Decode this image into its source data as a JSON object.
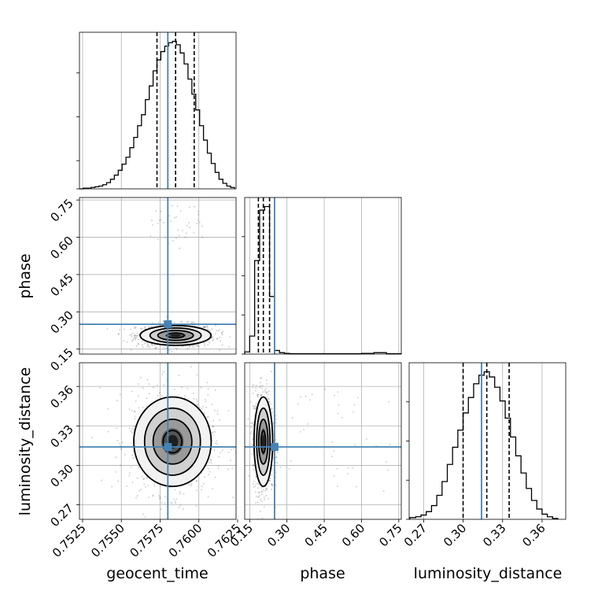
{
  "chart_data": {
    "type": "corner",
    "colors": {
      "truth": "#4682b4",
      "hist": "#000000",
      "grid": "#b0b0b0",
      "points": "#000000"
    },
    "parameters": [
      "geocent_time",
      "phase",
      "luminosity_distance"
    ],
    "axis_labels": {
      "x": [
        "geocent_time",
        "phase",
        "luminosity_distance"
      ],
      "y": [
        "phase",
        "luminosity_distance"
      ]
    },
    "ranges": {
      "geocent_time": [
        0.7523,
        0.7624
      ],
      "phase": [
        0.13,
        0.76
      ],
      "luminosity_distance": [
        0.259,
        0.378
      ]
    },
    "ticks": {
      "geocent_time": [
        {
          "v": 0.7525,
          "label": "0.7525"
        },
        {
          "v": 0.755,
          "label": "0.7550"
        },
        {
          "v": 0.7575,
          "label": "0.7575"
        },
        {
          "v": 0.76,
          "label": "0.7600"
        },
        {
          "v": 0.7625,
          "label": "0.7625"
        }
      ],
      "phase": [
        {
          "v": 0.15,
          "label": "0.15"
        },
        {
          "v": 0.3,
          "label": "0.30"
        },
        {
          "v": 0.45,
          "label": "0.45"
        },
        {
          "v": 0.6,
          "label": "0.60"
        },
        {
          "v": 0.75,
          "label": "0.75"
        }
      ],
      "luminosity_distance": [
        {
          "v": 0.27,
          "label": "0.27"
        },
        {
          "v": 0.3,
          "label": "0.30"
        },
        {
          "v": 0.33,
          "label": "0.33"
        },
        {
          "v": 0.36,
          "label": "0.36"
        }
      ]
    },
    "truths": {
      "geocent_time": 0.758,
      "phase": 0.25,
      "luminosity_distance": 0.314
    },
    "quantiles": {
      "geocent_time": [
        0.7573,
        0.7585,
        0.7597
      ],
      "phase": [
        0.185,
        0.205,
        0.23
      ],
      "luminosity_distance": [
        0.3,
        0.318,
        0.335
      ]
    },
    "histograms": {
      "geocent_time": {
        "edges": [
          0.7523,
          0.75255,
          0.7528,
          0.75305,
          0.7533,
          0.75355,
          0.7538,
          0.75405,
          0.7543,
          0.75455,
          0.7548,
          0.75505,
          0.7553,
          0.75555,
          0.7558,
          0.75605,
          0.7563,
          0.75655,
          0.7568,
          0.75705,
          0.7573,
          0.75755,
          0.7578,
          0.75805,
          0.7583,
          0.75855,
          0.7588,
          0.75905,
          0.7593,
          0.75955,
          0.7598,
          0.76005,
          0.7603,
          0.76055,
          0.7608,
          0.76105,
          0.7613,
          0.76155,
          0.7618,
          0.76205,
          0.7623
        ],
        "counts": [
          0,
          1,
          1,
          2,
          3,
          4,
          6,
          9,
          14,
          20,
          27,
          36,
          46,
          60,
          75,
          92,
          108,
          130,
          150,
          172,
          188,
          200,
          208,
          213,
          215,
          210,
          198,
          182,
          160,
          138,
          115,
          92,
          71,
          52,
          37,
          24,
          14,
          8,
          4,
          2
        ]
      },
      "phase": {
        "edges": [
          0.13,
          0.15,
          0.17,
          0.19,
          0.21,
          0.23,
          0.25,
          0.27,
          0.29,
          0.31,
          0.35,
          0.4,
          0.5,
          0.6,
          0.65,
          0.7,
          0.76
        ],
        "counts": [
          3,
          25,
          130,
          200,
          205,
          80,
          5,
          2,
          1,
          0.5,
          0.5,
          0.5,
          0.5,
          1,
          2,
          0.5
        ]
      },
      "luminosity_distance": {
        "edges": [
          0.2595,
          0.264,
          0.268,
          0.272,
          0.276,
          0.28,
          0.284,
          0.288,
          0.292,
          0.296,
          0.3,
          0.304,
          0.308,
          0.312,
          0.316,
          0.32,
          0.324,
          0.328,
          0.332,
          0.336,
          0.34,
          0.344,
          0.348,
          0.352,
          0.356,
          0.36,
          0.364,
          0.368,
          0.372
        ],
        "counts": [
          2,
          3,
          5,
          9,
          16,
          28,
          44,
          64,
          84,
          104,
          124,
          142,
          158,
          168,
          172,
          166,
          154,
          138,
          118,
          96,
          74,
          54,
          36,
          22,
          12,
          6,
          3,
          1
        ]
      }
    },
    "scatter_2d": [
      {
        "x": "geocent_time",
        "y": "phase",
        "mean": [
          0.7585,
          0.205
        ],
        "sd": [
          0.0011,
          0.02
        ],
        "outlier_box": {
          "x": [
            0.7568,
            0.7603
          ],
          "y": [
            0.55,
            0.73
          ]
        }
      },
      {
        "x": "geocent_time",
        "y": "luminosity_distance",
        "mean": [
          0.7583,
          0.318
        ],
        "sd": [
          0.0012,
          0.017
        ]
      },
      {
        "x": "phase",
        "y": "luminosity_distance",
        "mean": [
          0.205,
          0.318
        ],
        "sd": [
          0.018,
          0.017
        ],
        "outlier_box": {
          "x": [
            0.26,
            0.72
          ],
          "y": [
            0.28,
            0.36
          ]
        }
      }
    ]
  }
}
